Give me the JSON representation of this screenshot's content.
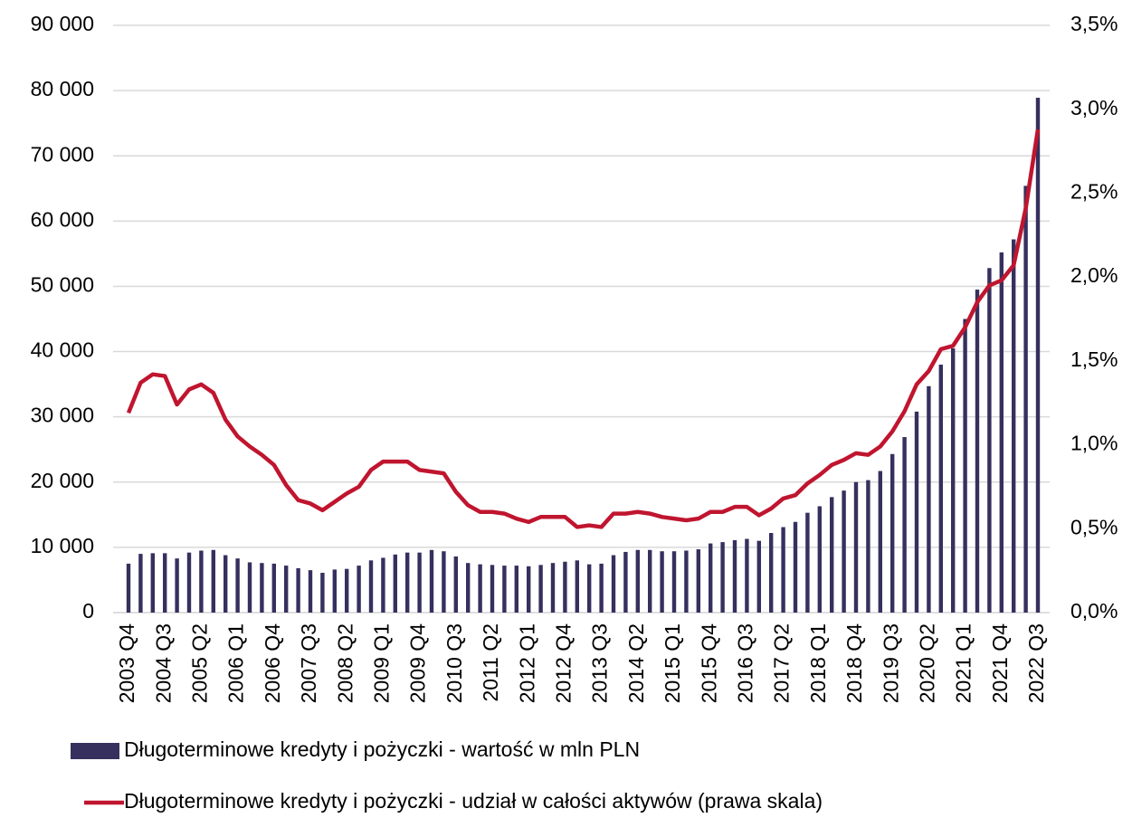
{
  "chart_data": {
    "type": "bar-line",
    "categories": [
      "2003 Q4",
      null,
      null,
      "2004 Q3",
      null,
      null,
      "2005 Q2",
      null,
      null,
      "2006 Q1",
      null,
      null,
      "2006 Q4",
      null,
      null,
      "2007 Q3",
      null,
      null,
      "2008 Q2",
      null,
      null,
      "2009 Q1",
      null,
      null,
      "2009 Q4",
      null,
      null,
      "2010 Q3",
      null,
      null,
      "2011 Q2",
      null,
      null,
      "2012 Q1",
      null,
      null,
      "2012 Q4",
      null,
      null,
      "2013 Q3",
      null,
      null,
      "2014 Q2",
      null,
      null,
      "2015 Q1",
      null,
      null,
      "2015 Q4",
      null,
      null,
      "2016 Q3",
      null,
      null,
      "2017 Q2",
      null,
      null,
      "2018 Q1",
      null,
      null,
      "2018 Q4",
      null,
      null,
      "2019 Q3",
      null,
      null,
      "2020 Q2",
      null,
      null,
      "2021 Q1",
      null,
      null,
      "2021 Q4",
      null,
      null,
      "2022 Q3"
    ],
    "series": [
      {
        "name": "Długoterminowe kredyty i pożyczki - wartość w mln PLN",
        "type": "bar",
        "color": "#35305e",
        "values": [
          7500,
          9000,
          9100,
          9100,
          8300,
          9200,
          9500,
          9600,
          8800,
          8300,
          7700,
          7600,
          7500,
          7200,
          6800,
          6500,
          6100,
          6600,
          6700,
          7200,
          8000,
          8400,
          8900,
          9200,
          9200,
          9600,
          9400,
          8600,
          7600,
          7400,
          7300,
          7200,
          7200,
          7100,
          7300,
          7600,
          7800,
          8000,
          7400,
          7500,
          8800,
          9300,
          9600,
          9600,
          9400,
          9400,
          9500,
          9700,
          10600,
          10800,
          11100,
          11300,
          11000,
          12200,
          13100,
          13900,
          15300,
          16300,
          17700,
          18700,
          20000,
          20300,
          21700,
          24300,
          26900,
          30800,
          34700,
          38000,
          40500,
          45000,
          49500,
          52800,
          55200,
          57200,
          65400,
          78900
        ]
      },
      {
        "name": "Długoterminowe kredyty i pożyczki - udział w całości aktywów (prawa skala)",
        "type": "line",
        "axis": "y2",
        "color": "#c0152f",
        "values": [
          1.19,
          1.37,
          1.42,
          1.41,
          1.24,
          1.33,
          1.36,
          1.31,
          1.15,
          1.05,
          0.99,
          0.94,
          0.88,
          0.76,
          0.67,
          0.65,
          0.61,
          0.66,
          0.71,
          0.75,
          0.85,
          0.9,
          0.9,
          0.9,
          0.85,
          0.84,
          0.83,
          0.72,
          0.64,
          0.6,
          0.6,
          0.59,
          0.56,
          0.54,
          0.57,
          0.57,
          0.57,
          0.51,
          0.52,
          0.51,
          0.59,
          0.59,
          0.6,
          0.59,
          0.57,
          0.56,
          0.55,
          0.56,
          0.6,
          0.6,
          0.63,
          0.63,
          0.58,
          0.62,
          0.68,
          0.7,
          0.77,
          0.82,
          0.88,
          0.91,
          0.95,
          0.94,
          0.99,
          1.08,
          1.2,
          1.36,
          1.44,
          1.57,
          1.59,
          1.7,
          1.85,
          1.95,
          1.98,
          2.07,
          2.41,
          2.88
        ]
      }
    ],
    "ylim": [
      0,
      90000
    ],
    "yticks": [
      0,
      {
        "value": 10000,
        "label": "10 000"
      },
      {
        "value": 20000,
        "label": "20 000"
      },
      {
        "value": 30000,
        "label": "30 000"
      },
      {
        "value": 40000,
        "label": "40 000"
      },
      {
        "value": 50000,
        "label": "50 000"
      },
      {
        "value": 60000,
        "label": "60 000"
      },
      {
        "value": 70000,
        "label": "70 000"
      },
      {
        "value": 80000,
        "label": "80 000"
      },
      {
        "value": 90000,
        "label": "90 000"
      }
    ],
    "y2lim": [
      0,
      3.5
    ],
    "y2ticks": [
      {
        "value": 0,
        "label": "0,0%"
      },
      {
        "value": 0.5,
        "label": "0,5%"
      },
      {
        "value": 1,
        "label": "1,0%"
      },
      {
        "value": 1.5,
        "label": "1,5%"
      },
      {
        "value": 2,
        "label": "2,0%"
      },
      {
        "value": 2.5,
        "label": "2,5%"
      },
      {
        "value": 3,
        "label": "3,0%"
      },
      {
        "value": 3.5,
        "label": "3,5%"
      }
    ],
    "grid": true
  }
}
